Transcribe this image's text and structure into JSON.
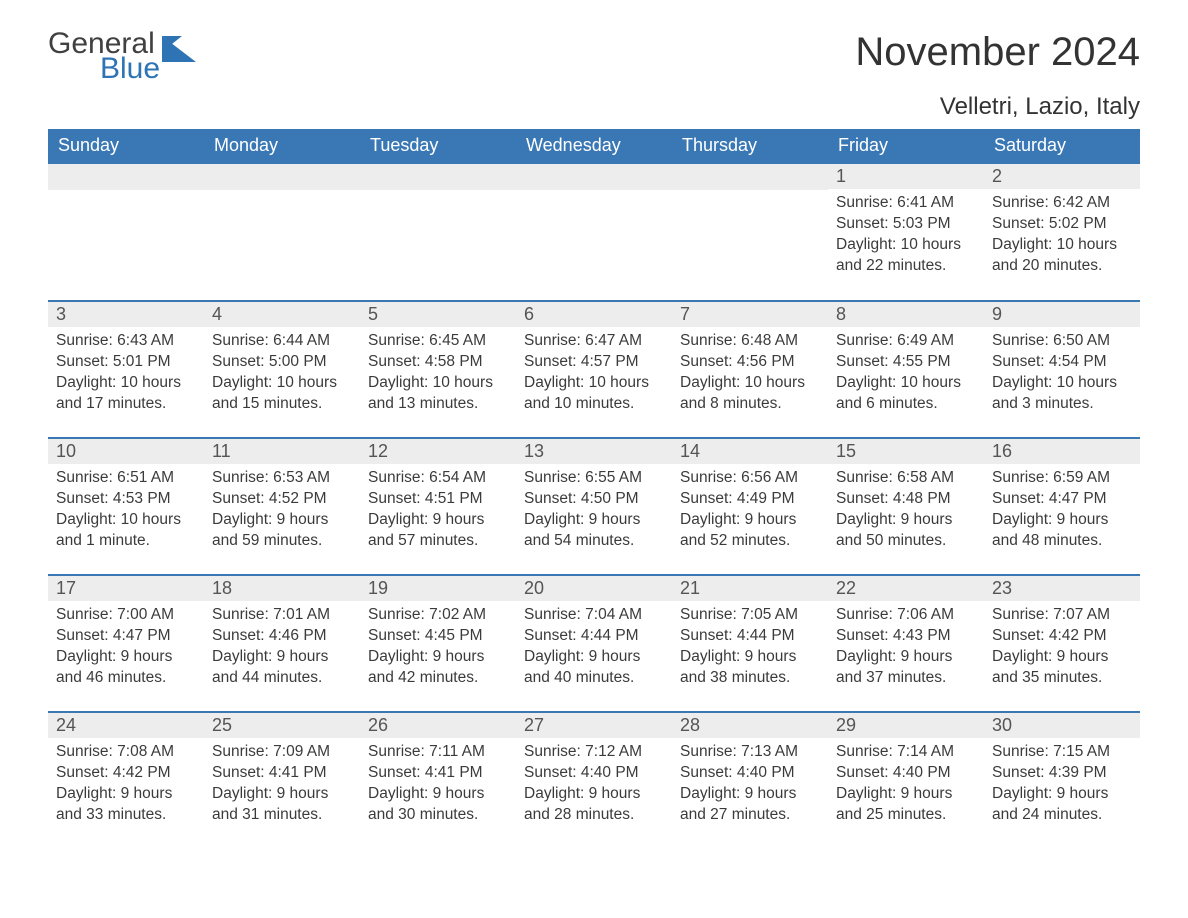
{
  "logo": {
    "word1": "General",
    "word2": "Blue",
    "mark_color": "#2e74b5",
    "text_gray": "#404040"
  },
  "title": "November 2024",
  "location": "Velletri, Lazio, Italy",
  "colors": {
    "header_bg": "#3a78b5",
    "header_text": "#ffffff",
    "row_border": "#3a78b5",
    "daynum_bg": "#ededed",
    "body_bg": "#ffffff",
    "text": "#333333"
  },
  "fonts": {
    "title_pt": 40,
    "location_pt": 24,
    "day_header_pt": 18,
    "body_pt": 15.5
  },
  "day_headers": [
    "Sunday",
    "Monday",
    "Tuesday",
    "Wednesday",
    "Thursday",
    "Friday",
    "Saturday"
  ],
  "weeks": [
    [
      {
        "blank": true
      },
      {
        "blank": true
      },
      {
        "blank": true
      },
      {
        "blank": true
      },
      {
        "blank": true
      },
      {
        "n": "1",
        "sunrise": "6:41 AM",
        "sunset": "5:03 PM",
        "daylight": "10 hours and 22 minutes."
      },
      {
        "n": "2",
        "sunrise": "6:42 AM",
        "sunset": "5:02 PM",
        "daylight": "10 hours and 20 minutes."
      }
    ],
    [
      {
        "n": "3",
        "sunrise": "6:43 AM",
        "sunset": "5:01 PM",
        "daylight": "10 hours and 17 minutes."
      },
      {
        "n": "4",
        "sunrise": "6:44 AM",
        "sunset": "5:00 PM",
        "daylight": "10 hours and 15 minutes."
      },
      {
        "n": "5",
        "sunrise": "6:45 AM",
        "sunset": "4:58 PM",
        "daylight": "10 hours and 13 minutes."
      },
      {
        "n": "6",
        "sunrise": "6:47 AM",
        "sunset": "4:57 PM",
        "daylight": "10 hours and 10 minutes."
      },
      {
        "n": "7",
        "sunrise": "6:48 AM",
        "sunset": "4:56 PM",
        "daylight": "10 hours and 8 minutes."
      },
      {
        "n": "8",
        "sunrise": "6:49 AM",
        "sunset": "4:55 PM",
        "daylight": "10 hours and 6 minutes."
      },
      {
        "n": "9",
        "sunrise": "6:50 AM",
        "sunset": "4:54 PM",
        "daylight": "10 hours and 3 minutes."
      }
    ],
    [
      {
        "n": "10",
        "sunrise": "6:51 AM",
        "sunset": "4:53 PM",
        "daylight": "10 hours and 1 minute."
      },
      {
        "n": "11",
        "sunrise": "6:53 AM",
        "sunset": "4:52 PM",
        "daylight": "9 hours and 59 minutes."
      },
      {
        "n": "12",
        "sunrise": "6:54 AM",
        "sunset": "4:51 PM",
        "daylight": "9 hours and 57 minutes."
      },
      {
        "n": "13",
        "sunrise": "6:55 AM",
        "sunset": "4:50 PM",
        "daylight": "9 hours and 54 minutes."
      },
      {
        "n": "14",
        "sunrise": "6:56 AM",
        "sunset": "4:49 PM",
        "daylight": "9 hours and 52 minutes."
      },
      {
        "n": "15",
        "sunrise": "6:58 AM",
        "sunset": "4:48 PM",
        "daylight": "9 hours and 50 minutes."
      },
      {
        "n": "16",
        "sunrise": "6:59 AM",
        "sunset": "4:47 PM",
        "daylight": "9 hours and 48 minutes."
      }
    ],
    [
      {
        "n": "17",
        "sunrise": "7:00 AM",
        "sunset": "4:47 PM",
        "daylight": "9 hours and 46 minutes."
      },
      {
        "n": "18",
        "sunrise": "7:01 AM",
        "sunset": "4:46 PM",
        "daylight": "9 hours and 44 minutes."
      },
      {
        "n": "19",
        "sunrise": "7:02 AM",
        "sunset": "4:45 PM",
        "daylight": "9 hours and 42 minutes."
      },
      {
        "n": "20",
        "sunrise": "7:04 AM",
        "sunset": "4:44 PM",
        "daylight": "9 hours and 40 minutes."
      },
      {
        "n": "21",
        "sunrise": "7:05 AM",
        "sunset": "4:44 PM",
        "daylight": "9 hours and 38 minutes."
      },
      {
        "n": "22",
        "sunrise": "7:06 AM",
        "sunset": "4:43 PM",
        "daylight": "9 hours and 37 minutes."
      },
      {
        "n": "23",
        "sunrise": "7:07 AM",
        "sunset": "4:42 PM",
        "daylight": "9 hours and 35 minutes."
      }
    ],
    [
      {
        "n": "24",
        "sunrise": "7:08 AM",
        "sunset": "4:42 PM",
        "daylight": "9 hours and 33 minutes."
      },
      {
        "n": "25",
        "sunrise": "7:09 AM",
        "sunset": "4:41 PM",
        "daylight": "9 hours and 31 minutes."
      },
      {
        "n": "26",
        "sunrise": "7:11 AM",
        "sunset": "4:41 PM",
        "daylight": "9 hours and 30 minutes."
      },
      {
        "n": "27",
        "sunrise": "7:12 AM",
        "sunset": "4:40 PM",
        "daylight": "9 hours and 28 minutes."
      },
      {
        "n": "28",
        "sunrise": "7:13 AM",
        "sunset": "4:40 PM",
        "daylight": "9 hours and 27 minutes."
      },
      {
        "n": "29",
        "sunrise": "7:14 AM",
        "sunset": "4:40 PM",
        "daylight": "9 hours and 25 minutes."
      },
      {
        "n": "30",
        "sunrise": "7:15 AM",
        "sunset": "4:39 PM",
        "daylight": "9 hours and 24 minutes."
      }
    ]
  ],
  "labels": {
    "sunrise": "Sunrise:",
    "sunset": "Sunset:",
    "daylight": "Daylight:"
  }
}
